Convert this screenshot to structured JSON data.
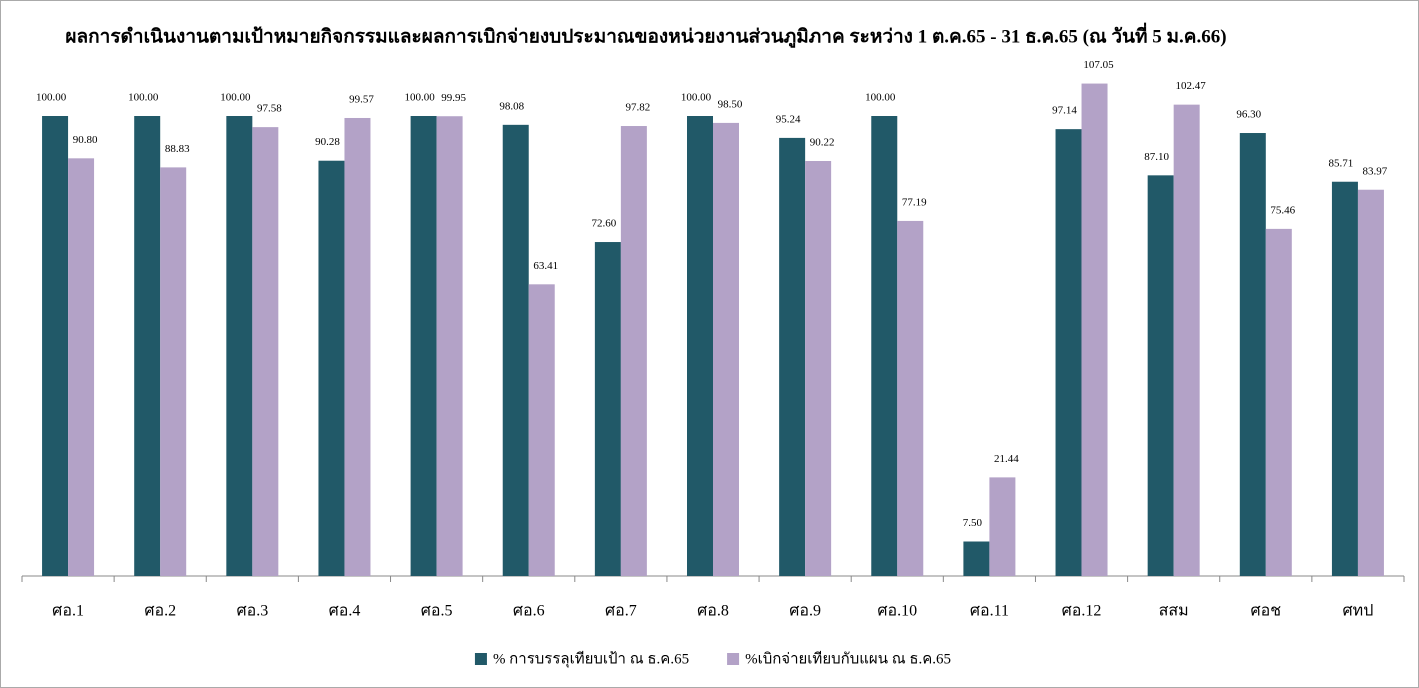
{
  "chart_data": {
    "type": "bar",
    "title": "ผลการดำเนินงานตามเป้าหมายกิจกรรมและผลการเบิกจ่ายงบประมาณของหน่วยงานส่วนภูมิภาค ระหว่าง 1 ต.ค.65 - 31 ธ.ค.65 (ณ วันที่ 5 ม.ค.66)",
    "categories": [
      "ศอ.1",
      "ศอ.2",
      "ศอ.3",
      "ศอ.4",
      "ศอ.5",
      "ศอ.6",
      "ศอ.7",
      "ศอ.8",
      "ศอ.9",
      "ศอ.10",
      "ศอ.11",
      "ศอ.12",
      "สสม",
      "ศอช",
      "ศทป"
    ],
    "series": [
      {
        "name": "% การบรรลุเทียบเป้า ณ ธ.ค.65",
        "color": "#215968",
        "values": [
          100,
          100,
          100,
          90.28,
          100,
          98.08,
          72.6,
          100,
          95.24,
          100,
          7.5,
          97.14,
          87.1,
          96.3,
          85.71
        ],
        "value_labels": [
          "100.00",
          "100.00",
          "100.00",
          "90.28",
          "100.00",
          "98.08",
          "72.60",
          "100.00",
          "95.24",
          "100.00",
          "7.50",
          "97.14",
          "87.10",
          "96.30",
          "85.71"
        ]
      },
      {
        "name": "%เบิกจ่ายเทียบกับแผน ณ ธ.ค.65",
        "color": "#b3a2c7",
        "values": [
          90.8,
          88.83,
          97.58,
          99.57,
          99.95,
          63.41,
          97.82,
          98.5,
          90.22,
          77.19,
          21.44,
          107.05,
          102.47,
          75.46,
          83.97
        ],
        "value_labels": [
          "90.80",
          "88.83",
          "97.58",
          "99.57",
          "99.95",
          "63.41",
          "97.82",
          "98.50",
          "90.22",
          "77.19",
          "21.44",
          "107.05",
          "102.47",
          "75.46",
          "83.97"
        ]
      }
    ],
    "ylim": [
      0,
      110
    ],
    "legend": "bottom"
  }
}
